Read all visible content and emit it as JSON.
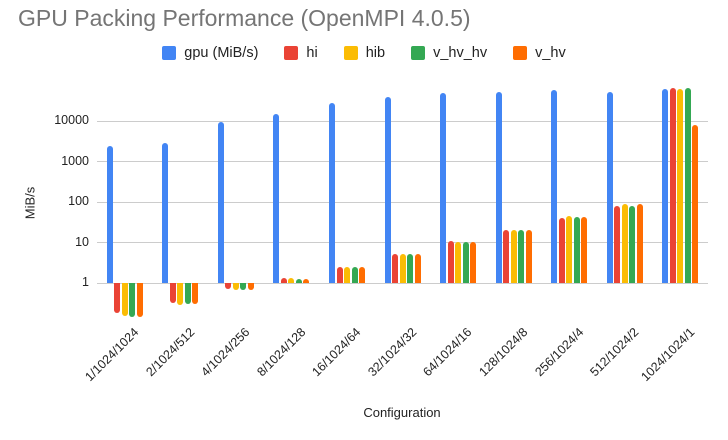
{
  "title": "GPU Packing Performance (OpenMPI 4.0.5)",
  "chart_data": {
    "type": "bar",
    "title": "GPU Packing Performance (OpenMPI 4.0.5)",
    "title_color": "#757575",
    "xlabel": "Configuration",
    "ylabel": "MiB/s",
    "y_scale": "log",
    "y_ticks": [
      1,
      10,
      100,
      1000,
      10000
    ],
    "ylim": [
      0.12,
      72000
    ],
    "grid": true,
    "gridline_color": "#cccccc",
    "legend_position": "top",
    "background": "#ffffff",
    "categories": [
      "1/1024/1024",
      "2/1024/512",
      "4/1024/256",
      "8/1024/128",
      "16/1024/64",
      "32/1024/32",
      "64/1024/16",
      "128/1024/8",
      "256/1024/4",
      "512/1024/2",
      "1024/1024/1"
    ],
    "series": [
      {
        "name": "gpu (MiB/s)",
        "color": "#4285F4",
        "values": [
          2400,
          2800,
          9500,
          14500,
          28000,
          38000,
          48000,
          52000,
          57000,
          52000,
          60000
        ]
      },
      {
        "name": "hi",
        "color": "#EA4335",
        "values": [
          0.18,
          0.31,
          0.68,
          1.3,
          2.5,
          5.2,
          10.5,
          20,
          40,
          80,
          66000
        ]
      },
      {
        "name": "hib",
        "color": "#FBBC04",
        "values": [
          0.15,
          0.28,
          0.66,
          1.3,
          2.4,
          5.1,
          10.2,
          20,
          44,
          86,
          60000
        ]
      },
      {
        "name": "v_hv_hv",
        "color": "#34A853",
        "values": [
          0.14,
          0.29,
          0.66,
          1.25,
          2.45,
          5.1,
          10.4,
          20,
          41,
          80,
          63000
        ]
      },
      {
        "name": "v_hv",
        "color": "#FF6D01",
        "values": [
          0.14,
          0.29,
          0.66,
          1.25,
          2.5,
          5.2,
          10.2,
          20,
          43,
          90,
          7800
        ]
      }
    ]
  }
}
